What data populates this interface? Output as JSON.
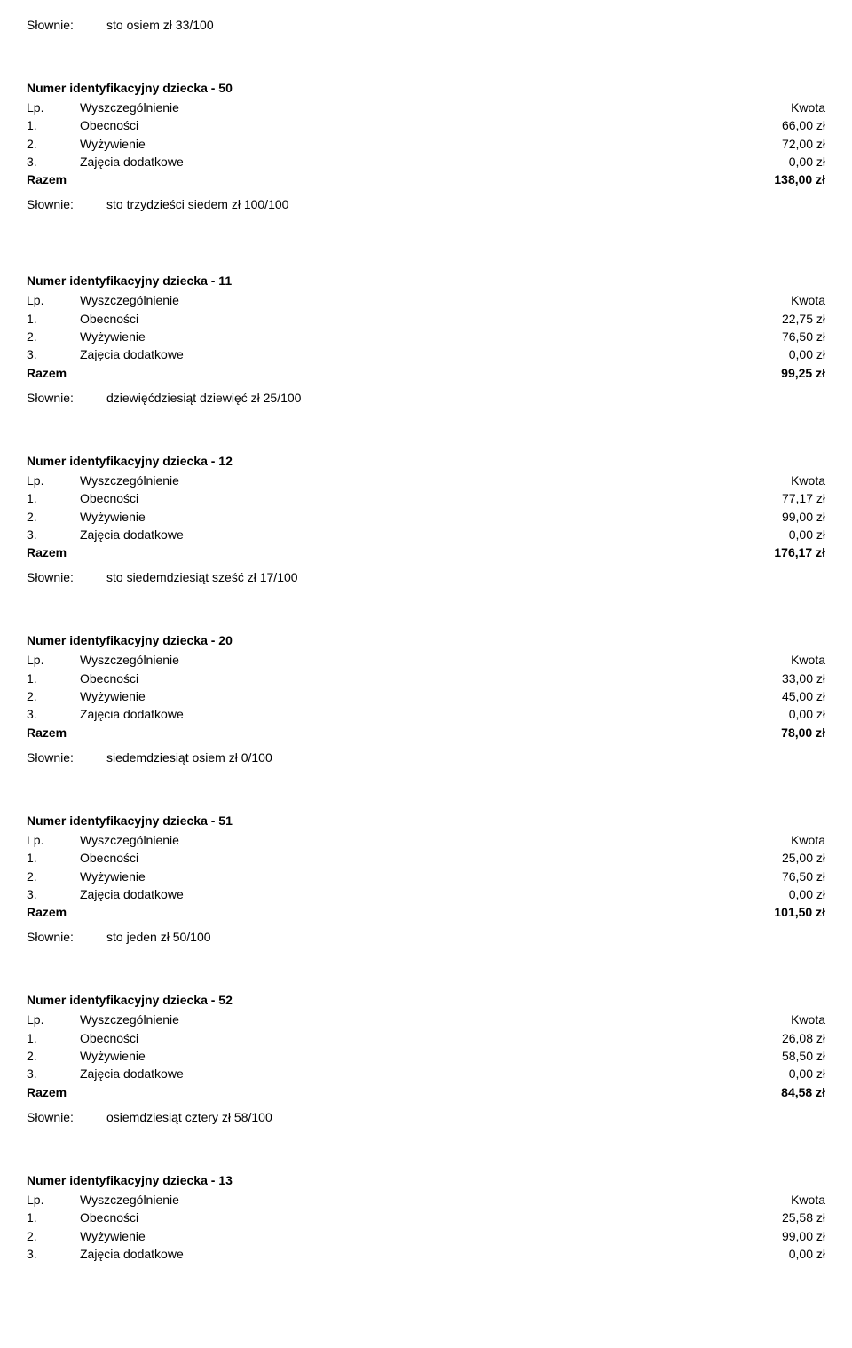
{
  "labels": {
    "slownie": "Słownie:",
    "lp_wysz": "Wyszczególnienie",
    "kwota": "Kwota",
    "razem": "Razem",
    "lp_prefix": "Lp.",
    "row1": "Obecności",
    "row2": "Wyżywienie",
    "row3": "Zajęcia dodatkowe",
    "num1": "1.",
    "num2": "2.",
    "num3": "3."
  },
  "top": {
    "words": "sto  osiem  zł 33/100"
  },
  "blocks": [
    {
      "title": "Numer identyfikacyjny dziecka - 50",
      "v1": "66,00 zł",
      "v2": "72,00 zł",
      "v3": "0,00 zł",
      "total": "138,00 zł",
      "words": "sto  trzydzieści  siedem  zł 100/100"
    },
    {
      "title": "Numer identyfikacyjny dziecka - 11",
      "v1": "22,75 zł",
      "v2": "76,50 zł",
      "v3": "0,00 zł",
      "total": "99,25 zł",
      "words": "dziewięćdziesiąt  dziewięć  zł 25/100"
    },
    {
      "title": "Numer identyfikacyjny dziecka - 12",
      "v1": "77,17 zł",
      "v2": "99,00 zł",
      "v3": "0,00 zł",
      "total": "176,17 zł",
      "words": "sto  siedemdziesiąt  sześć  zł 17/100"
    },
    {
      "title": "Numer identyfikacyjny dziecka - 20",
      "v1": "33,00 zł",
      "v2": "45,00 zł",
      "v3": "0,00 zł",
      "total": "78,00 zł",
      "words": "siedemdziesiąt  osiem  zł 0/100"
    },
    {
      "title": "Numer identyfikacyjny dziecka - 51",
      "v1": "25,00 zł",
      "v2": "76,50 zł",
      "v3": "0,00 zł",
      "total": "101,50 zł",
      "words": "sto  jeden  zł 50/100"
    },
    {
      "title": "Numer identyfikacyjny dziecka - 52",
      "v1": "26,08 zł",
      "v2": "58,50 zł",
      "v3": "0,00 zł",
      "total": "84,58 zł",
      "words": "osiemdziesiąt  cztery  zł 58/100"
    },
    {
      "title": "Numer identyfikacyjny dziecka - 13",
      "v1": "25,58 zł",
      "v2": "99,00 zł",
      "v3": "0,00 zł",
      "total": "",
      "words": ""
    }
  ]
}
